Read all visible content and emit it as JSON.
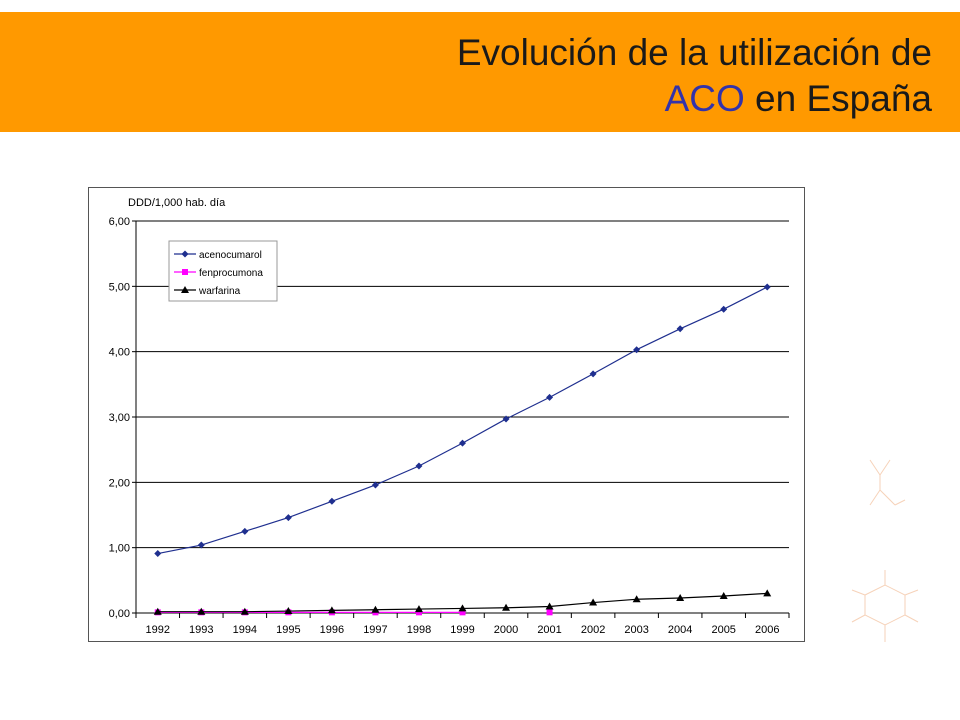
{
  "header": {
    "title_line1": "Evolución  de la utilización de",
    "title_acronym": "ACO",
    "title_line2_rest": " en España",
    "banner_color": "#ff9900",
    "acronym_color": "#3333aa"
  },
  "chart_data": {
    "type": "line",
    "ylabel": "DDD/1,000 hab. día",
    "xlabel": "",
    "ylim": [
      0,
      6
    ],
    "yticks": [
      "0,00",
      "1,00",
      "2,00",
      "3,00",
      "4,00",
      "5,00",
      "6,00"
    ],
    "categories": [
      "1992",
      "1993",
      "1994",
      "1995",
      "1996",
      "1997",
      "1998",
      "1999",
      "2000",
      "2001",
      "2002",
      "2003",
      "2004",
      "2005",
      "2006"
    ],
    "grid": "horizontal",
    "legend_position": "top-left",
    "series": [
      {
        "name": "acenocumarol",
        "color": "#1f2f8f",
        "marker": "diamond",
        "values": [
          0.91,
          1.04,
          1.25,
          1.46,
          1.71,
          1.96,
          2.25,
          2.6,
          2.97,
          3.3,
          3.66,
          4.03,
          4.35,
          4.65,
          4.99
        ]
      },
      {
        "name": "fenprocumona",
        "color": "#ff00ff",
        "marker": "square",
        "values": [
          0.01,
          0.01,
          0.01,
          0.01,
          0.01,
          0.01,
          0.01,
          0.01,
          null,
          0.01,
          null,
          null,
          null,
          null,
          null
        ]
      },
      {
        "name": "warfarina",
        "color": "#000000",
        "marker": "triangle",
        "values": [
          0.02,
          0.02,
          0.02,
          0.03,
          0.04,
          0.05,
          0.06,
          0.07,
          0.08,
          0.1,
          0.16,
          0.21,
          0.23,
          0.26,
          0.3
        ]
      }
    ]
  }
}
